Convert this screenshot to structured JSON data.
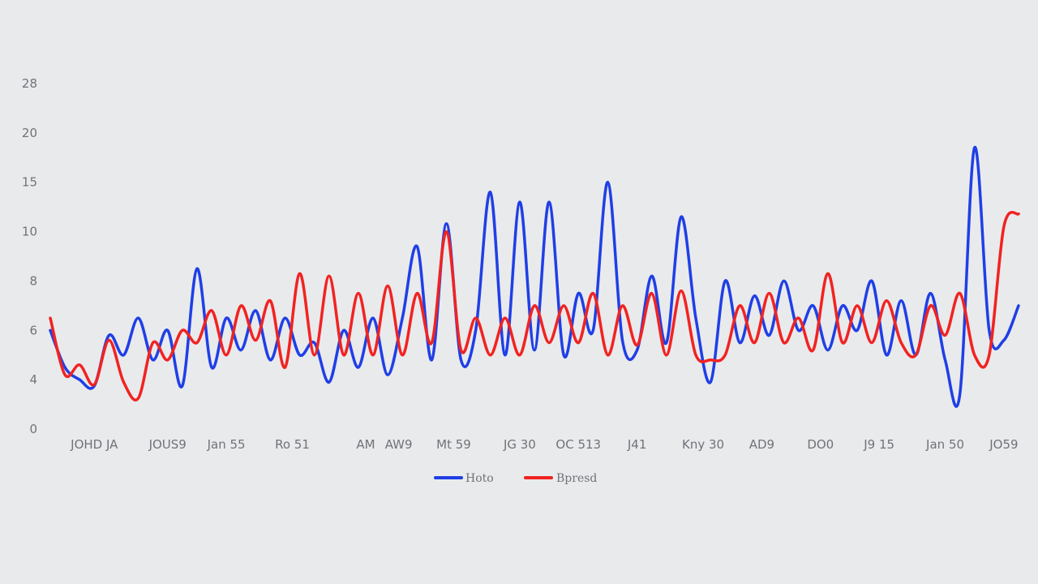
{
  "chart_data": {
    "type": "line",
    "title": "",
    "xlabel": "",
    "ylabel": "",
    "ylim": [
      0,
      28
    ],
    "yticks": [
      "0",
      "4",
      "6",
      "8",
      "10",
      "15",
      "20",
      "28"
    ],
    "xlim": [
      0,
      132
    ],
    "xticks": [
      {
        "label": "JOHD JA",
        "x": 6
      },
      {
        "label": "JOUS9",
        "x": 16
      },
      {
        "label": "Jan 55",
        "x": 24
      },
      {
        "label": "Ro 51",
        "x": 33
      },
      {
        "label": "AM",
        "x": 43
      },
      {
        "label": "AW9",
        "x": 47.5
      },
      {
        "label": "Mt 59",
        "x": 55
      },
      {
        "label": "JG 30",
        "x": 64
      },
      {
        "label": "OC 513",
        "x": 72
      },
      {
        "label": "J41",
        "x": 80
      },
      {
        "label": "Kny 30",
        "x": 89
      },
      {
        "label": "AD9",
        "x": 97
      },
      {
        "label": "DO0",
        "x": 105
      },
      {
        "label": "J9 15",
        "x": 113
      },
      {
        "label": "Jan 50",
        "x": 122
      },
      {
        "label": "JO59",
        "x": 130
      }
    ],
    "grid": false,
    "legend_position": "bottom-center",
    "series": [
      {
        "name": "Hoto",
        "color": "#1f3fe6",
        "x": [
          0,
          2,
          4,
          6,
          8,
          10,
          12,
          14,
          16,
          18,
          20,
          22,
          24,
          26,
          28,
          30,
          32,
          34,
          36,
          38,
          40,
          42,
          44,
          46,
          48,
          50,
          52,
          54,
          56,
          58,
          60,
          62,
          64,
          66,
          68,
          70,
          72,
          74,
          76,
          78,
          80,
          82,
          84,
          86,
          88,
          90,
          92,
          94,
          96,
          98,
          100,
          102,
          104,
          106,
          108,
          110,
          112,
          114,
          116,
          118,
          120,
          122,
          124,
          126,
          128,
          130,
          132
        ],
        "values": [
          6.0,
          4.5,
          4.0,
          3.5,
          5.8,
          5.0,
          6.5,
          4.8,
          6.0,
          3.5,
          8.5,
          4.5,
          6.5,
          5.2,
          6.8,
          4.8,
          6.5,
          5.0,
          5.5,
          3.8,
          6.0,
          4.5,
          6.5,
          4.2,
          6.5,
          9.4,
          4.8,
          10.8,
          4.8,
          6.0,
          14.0,
          5.0,
          13.0,
          5.2,
          13.0,
          5.0,
          7.5,
          6.0,
          15.0,
          5.6,
          5.2,
          8.2,
          5.5,
          11.5,
          6.5,
          3.8,
          8.0,
          5.5,
          7.4,
          5.8,
          8.0,
          6.0,
          7.0,
          5.2,
          7.0,
          6.0,
          8.0,
          5.0,
          7.2,
          5.0,
          7.5,
          4.8,
          2.8,
          18.5,
          6.0,
          5.6,
          7.0
        ]
      },
      {
        "name": "Bpresd",
        "color": "#f12321",
        "x": [
          0,
          2,
          4,
          6,
          8,
          10,
          12,
          14,
          16,
          18,
          20,
          22,
          24,
          26,
          28,
          30,
          32,
          34,
          36,
          38,
          40,
          42,
          44,
          46,
          48,
          50,
          52,
          54,
          56,
          58,
          60,
          62,
          64,
          66,
          68,
          70,
          72,
          74,
          76,
          78,
          80,
          82,
          84,
          86,
          88,
          90,
          92,
          94,
          96,
          98,
          100,
          102,
          104,
          106,
          108,
          110,
          112,
          114,
          116,
          118,
          120,
          122,
          124,
          126,
          128,
          130,
          132
        ],
        "values": [
          6.5,
          4.2,
          4.6,
          3.6,
          5.6,
          3.8,
          2.5,
          5.5,
          4.8,
          6.0,
          5.5,
          6.8,
          5.0,
          7.0,
          5.6,
          7.2,
          4.5,
          8.3,
          5.0,
          8.2,
          5.0,
          7.5,
          5.0,
          7.8,
          5.0,
          7.5,
          5.5,
          10.0,
          5.2,
          6.5,
          5.0,
          6.5,
          5.0,
          7.0,
          5.5,
          7.0,
          5.5,
          7.5,
          5.0,
          7.0,
          5.4,
          7.5,
          5.0,
          7.6,
          5.0,
          4.8,
          5.0,
          7.0,
          5.5,
          7.5,
          5.5,
          6.5,
          5.2,
          8.3,
          5.5,
          7.0,
          5.5,
          7.2,
          5.5,
          5.0,
          7.0,
          5.8,
          7.5,
          5.0,
          5.0,
          10.5,
          11.8
        ]
      }
    ]
  }
}
